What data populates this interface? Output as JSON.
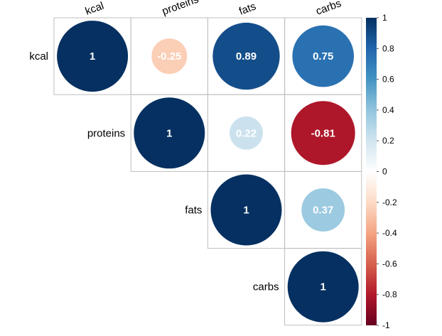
{
  "chart_data": {
    "type": "heatmap",
    "variables": [
      "kcal",
      "proteins",
      "fats",
      "carbs"
    ],
    "matrix": [
      [
        1,
        -0.25,
        0.89,
        0.75
      ],
      [
        null,
        1,
        0.22,
        -0.81
      ],
      [
        null,
        null,
        1,
        0.37
      ],
      [
        null,
        null,
        null,
        1
      ]
    ],
    "value_labels": [
      [
        "1",
        "-0.25",
        "0.89",
        "0.75"
      ],
      [
        null,
        "1",
        "0.22",
        "-0.81"
      ],
      [
        null,
        null,
        "1",
        "0.37"
      ],
      [
        null,
        null,
        null,
        "1"
      ]
    ],
    "layout": "upper-triangle",
    "glyph": "circle",
    "colorbar": {
      "range": [
        -1,
        1
      ],
      "ticks": [
        "1",
        "0.8",
        "0.6",
        "0.4",
        "0.2",
        "0",
        "-0.2",
        "-0.4",
        "-0.6",
        "-0.8",
        "-1"
      ],
      "tick_values": [
        1,
        0.8,
        0.6,
        0.4,
        0.2,
        0,
        -0.2,
        -0.4,
        -0.6,
        -0.8,
        -1
      ],
      "placement": "right",
      "colors": [
        "#67001f",
        "#b2182b",
        "#d6604d",
        "#f4a582",
        "#fddbc7",
        "#ffffff",
        "#d1e5f0",
        "#92c5de",
        "#4393c3",
        "#2166ac",
        "#053061"
      ]
    },
    "grid_color": "#bebebe"
  }
}
